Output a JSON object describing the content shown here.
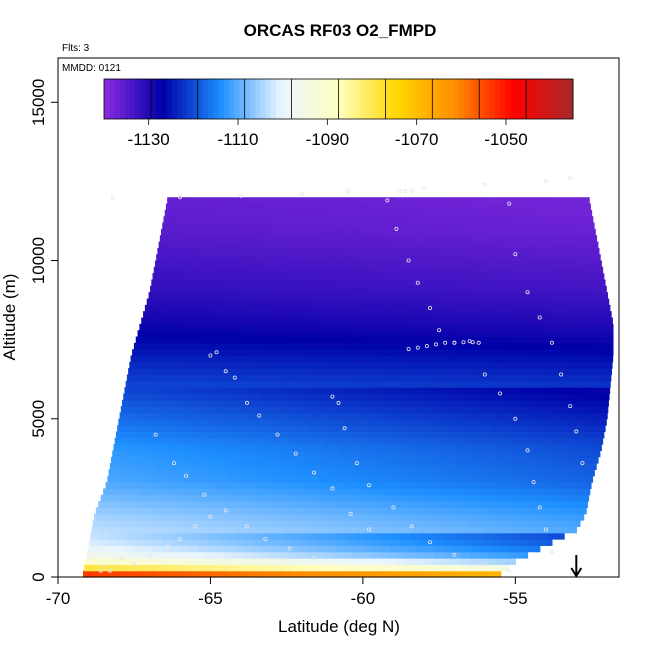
{
  "chart_data": {
    "type": "heatmap",
    "title": "ORCAS RF03 O2_FMPD",
    "top_left_note": "Flts: 3",
    "inner_note": "MMDD: 0121",
    "xlabel": "Latitude (deg N)",
    "ylabel": "Altitude (m)",
    "xlim": [
      -70,
      -51.6
    ],
    "ylim": [
      0,
      16400
    ],
    "x_ticks": [
      -70,
      -65,
      -60,
      -55
    ],
    "x_tick_labels": [
      "-70",
      "-65",
      "-60",
      "-55"
    ],
    "y_ticks": [
      0,
      5000,
      10000,
      15000
    ],
    "y_tick_labels": [
      "0",
      "5000",
      "10000",
      "15000"
    ],
    "colorbar": {
      "range": [
        -1140,
        -1035
      ],
      "ticks": [
        -1130,
        -1110,
        -1090,
        -1070,
        -1050
      ],
      "tick_labels": [
        "-1130",
        "-1110",
        "-1090",
        "-1070",
        "-1050"
      ],
      "colors": [
        "#8b2be2",
        "#0000a8",
        "#1e90ff",
        "#e8f4ff",
        "#ffffc0",
        "#ffd700",
        "#ff8c00",
        "#ff0000",
        "#a52a2a"
      ]
    },
    "field_profile": [
      {
        "alt": 0,
        "value": -1040
      },
      {
        "alt": 300,
        "value": -1078
      },
      {
        "alt": 600,
        "value": -1094
      },
      {
        "alt": 1000,
        "value": -1100
      },
      {
        "alt": 1500,
        "value": -1103
      },
      {
        "alt": 2000,
        "value": -1105
      },
      {
        "alt": 3000,
        "value": -1110
      },
      {
        "alt": 4000,
        "value": -1112
      },
      {
        "alt": 5000,
        "value": -1116
      },
      {
        "alt": 6000,
        "value": -1120
      },
      {
        "alt": 7000,
        "value": -1124
      },
      {
        "alt": 8000,
        "value": -1128
      },
      {
        "alt": 9000,
        "value": -1131
      },
      {
        "alt": 10000,
        "value": -1133
      },
      {
        "alt": 11000,
        "value": -1135
      },
      {
        "alt": 12000,
        "value": -1136
      },
      {
        "alt": 12600,
        "value": -1137
      }
    ],
    "domain_outline": {
      "bottom": 0,
      "top": [
        [
          -68.0,
          12000
        ],
        [
          -62,
          12050
        ],
        [
          -60,
          12200
        ],
        [
          -58,
          12300
        ],
        [
          -55,
          12500
        ],
        [
          -53.2,
          12700
        ]
      ],
      "left": [
        [
          -69.2,
          0
        ],
        [
          -69.0,
          1000
        ],
        [
          -68.8,
          2000
        ],
        [
          -68.4,
          3000
        ],
        [
          -68.2,
          4000
        ],
        [
          -68.0,
          5000
        ],
        [
          -67.8,
          6000
        ],
        [
          -67.6,
          7000
        ],
        [
          -67.3,
          8000
        ],
        [
          -67.0,
          9000
        ],
        [
          -66.8,
          10000
        ],
        [
          -66.6,
          11000
        ],
        [
          -66.4,
          12000
        ]
      ],
      "right": [
        [
          -53.0,
          12700
        ],
        [
          -52.6,
          12000
        ],
        [
          -52.4,
          11000
        ],
        [
          -52.2,
          10000
        ],
        [
          -52.0,
          9000
        ],
        [
          -51.8,
          8000
        ],
        [
          -51.8,
          7000
        ],
        [
          -51.9,
          6000
        ],
        [
          -52.0,
          5000
        ],
        [
          -52.2,
          4000
        ],
        [
          -52.5,
          3000
        ],
        [
          -52.7,
          2000
        ],
        [
          -53.0,
          1500
        ],
        [
          -54.0,
          1000
        ],
        [
          -55.0,
          500
        ],
        [
          -55.6,
          0
        ]
      ]
    },
    "flight_track": [
      [
        -68.2,
        12000
      ],
      [
        -66,
        12000
      ],
      [
        -64,
        12050
      ],
      [
        -62,
        12100
      ],
      [
        -60.5,
        12200
      ],
      [
        -58,
        12300
      ],
      [
        -56,
        12400
      ],
      [
        -54,
        12500
      ],
      [
        -53.2,
        12600
      ],
      [
        -58.8,
        12200
      ],
      [
        -58.6,
        12200
      ],
      [
        -58.4,
        12200
      ],
      [
        -59.2,
        11900
      ],
      [
        -58.9,
        11000
      ],
      [
        -58.5,
        10000
      ],
      [
        -58.2,
        9300
      ],
      [
        -57.8,
        8500
      ],
      [
        -57.5,
        7800
      ],
      [
        -57.0,
        7400
      ],
      [
        -56.5,
        7450
      ],
      [
        -56.2,
        7400
      ],
      [
        -56.0,
        6400
      ],
      [
        -55.5,
        5800
      ],
      [
        -55.0,
        5000
      ],
      [
        -54.6,
        4000
      ],
      [
        -54.4,
        3000
      ],
      [
        -54.2,
        2200
      ],
      [
        -54.0,
        1500
      ],
      [
        -53.8,
        800
      ],
      [
        -58.5,
        7200
      ],
      [
        -58.2,
        7250
      ],
      [
        -57.9,
        7300
      ],
      [
        -57.6,
        7350
      ],
      [
        -57.3,
        7400
      ],
      [
        -57.0,
        7400
      ],
      [
        -56.7,
        7420
      ],
      [
        -56.4,
        7420
      ],
      [
        -55.2,
        11800
      ],
      [
        -55.0,
        10200
      ],
      [
        -54.6,
        9000
      ],
      [
        -54.2,
        8200
      ],
      [
        -53.8,
        7400
      ],
      [
        -53.5,
        6400
      ],
      [
        -53.2,
        5400
      ],
      [
        -53.0,
        4600
      ],
      [
        -52.8,
        3600
      ],
      [
        -65.0,
        7000
      ],
      [
        -64.8,
        7100
      ],
      [
        -64.5,
        6500
      ],
      [
        -64.2,
        6300
      ],
      [
        -63.8,
        5500
      ],
      [
        -63.4,
        5100
      ],
      [
        -62.8,
        4500
      ],
      [
        -62.2,
        3900
      ],
      [
        -61.6,
        3300
      ],
      [
        -61.0,
        2800
      ],
      [
        -60.4,
        2000
      ],
      [
        -59.8,
        1500
      ],
      [
        -61.0,
        5700
      ],
      [
        -60.8,
        5500
      ],
      [
        -60.6,
        4700
      ],
      [
        -60.2,
        3600
      ],
      [
        -59.8,
        2900
      ],
      [
        -59.0,
        2200
      ],
      [
        -58.4,
        1600
      ],
      [
        -57.8,
        1100
      ],
      [
        -57.0,
        700
      ],
      [
        -56.0,
        400
      ],
      [
        -55.2,
        200
      ],
      [
        -66.8,
        4500
      ],
      [
        -66.2,
        3600
      ],
      [
        -65.8,
        3200
      ],
      [
        -65.2,
        2600
      ],
      [
        -64.5,
        2100
      ],
      [
        -63.8,
        1600
      ],
      [
        -63.2,
        1200
      ],
      [
        -62.4,
        900
      ],
      [
        -61.6,
        600
      ],
      [
        -68.6,
        200
      ],
      [
        -68.3,
        200
      ],
      [
        -67.5,
        400
      ],
      [
        -67.0,
        700
      ],
      [
        -66.4,
        1000
      ],
      [
        -66.0,
        1200
      ],
      [
        -65.5,
        1600
      ],
      [
        -65.0,
        1900
      ],
      [
        -68.5,
        400
      ],
      [
        -67.9,
        600
      ],
      [
        -67.3,
        900
      ]
    ],
    "marker": {
      "x": -53.0,
      "label": "↓"
    }
  }
}
